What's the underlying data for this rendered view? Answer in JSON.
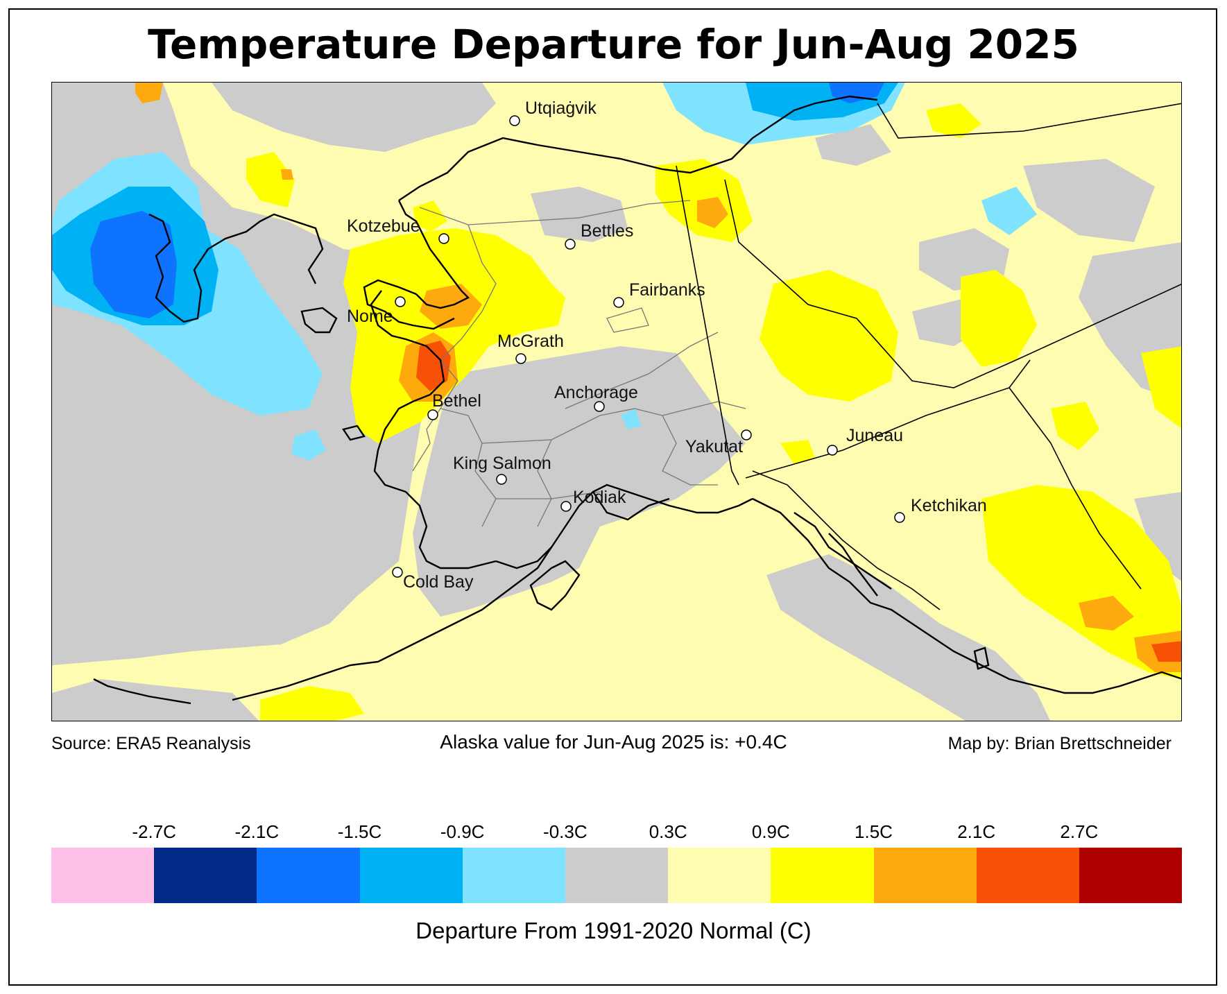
{
  "title": "Temperature Departure for Jun-Aug 2025",
  "footer": {
    "source": "Source: ERA5 Reanalysis",
    "alaska_value": "Alaska value for Jun-Aug 2025 is: +0.4C",
    "credit": "Map by: Brian Brettschneider"
  },
  "legend": {
    "ticks": [
      "-2.7C",
      "-2.1C",
      "-1.5C",
      "-0.9C",
      "-0.3C",
      "0.3C",
      "0.9C",
      "1.5C",
      "2.1C",
      "2.7C"
    ],
    "colors": [
      "#ffc0e8",
      "#002a86",
      "#0e74ff",
      "#00b2f4",
      "#7fe2fe",
      "#cccccc",
      "#fefcb0",
      "#feff00",
      "#fea90e",
      "#f65105",
      "#ae0000"
    ],
    "label": "Departure From 1991-2020 Normal (C)"
  },
  "cities": [
    {
      "name": "Utqiaġvik"
    },
    {
      "name": "Kotzebue"
    },
    {
      "name": "Bettles"
    },
    {
      "name": "Fairbanks"
    },
    {
      "name": "Nome"
    },
    {
      "name": "McGrath"
    },
    {
      "name": "Anchorage"
    },
    {
      "name": "Bethel"
    },
    {
      "name": "Yakutat"
    },
    {
      "name": "Juneau"
    },
    {
      "name": "King Salmon"
    },
    {
      "name": "Kodiak"
    },
    {
      "name": "Ketchikan"
    },
    {
      "name": "Cold Bay"
    }
  ]
}
